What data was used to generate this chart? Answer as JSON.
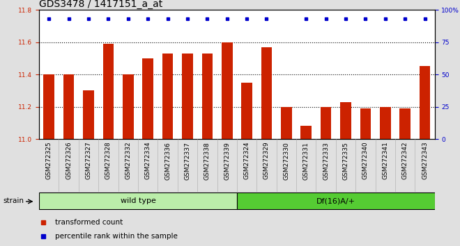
{
  "title": "GDS3478 / 1417151_a_at",
  "categories": [
    "GSM272325",
    "GSM272326",
    "GSM272327",
    "GSM272328",
    "GSM272332",
    "GSM272334",
    "GSM272336",
    "GSM272337",
    "GSM272338",
    "GSM272339",
    "GSM272324",
    "GSM272329",
    "GSM272330",
    "GSM272331",
    "GSM272333",
    "GSM272335",
    "GSM272340",
    "GSM272341",
    "GSM272342",
    "GSM272343"
  ],
  "bar_values": [
    11.4,
    11.4,
    11.3,
    11.59,
    11.4,
    11.5,
    11.53,
    11.53,
    11.53,
    11.6,
    11.35,
    11.57,
    11.2,
    11.08,
    11.2,
    11.23,
    11.19,
    11.2,
    11.19,
    11.45
  ],
  "percentile_show": [
    true,
    true,
    true,
    true,
    true,
    true,
    true,
    true,
    true,
    true,
    true,
    true,
    false,
    true,
    true,
    true,
    true,
    true,
    true,
    true
  ],
  "bar_color": "#cc2200",
  "percentile_color": "#0000cc",
  "ylim_left": [
    11.0,
    11.8
  ],
  "ylim_right": [
    0,
    100
  ],
  "yticks_left": [
    11.0,
    11.2,
    11.4,
    11.6,
    11.8
  ],
  "yticks_right": [
    0,
    25,
    50,
    75,
    100
  ],
  "ytick_right_labels": [
    "0",
    "25",
    "50",
    "75",
    "100%"
  ],
  "dotted_lines": [
    11.2,
    11.4,
    11.6
  ],
  "wild_type_count": 10,
  "wild_type_label": "wild type",
  "df16_label": "Df(16)A/+",
  "strain_label": "strain",
  "legend_items": [
    {
      "color": "#cc2200",
      "label": "transformed count"
    },
    {
      "color": "#0000cc",
      "label": "percentile rank within the sample"
    }
  ],
  "background_color": "#e0e0e0",
  "plot_bg_color": "#ffffff",
  "xtick_bg_color": "#d0d0d0",
  "group_bar_light_green": "#bbeeaa",
  "group_bar_green": "#55cc33",
  "title_fontsize": 10,
  "tick_fontsize": 6.5,
  "legend_fontsize": 7.5,
  "group_fontsize": 8
}
